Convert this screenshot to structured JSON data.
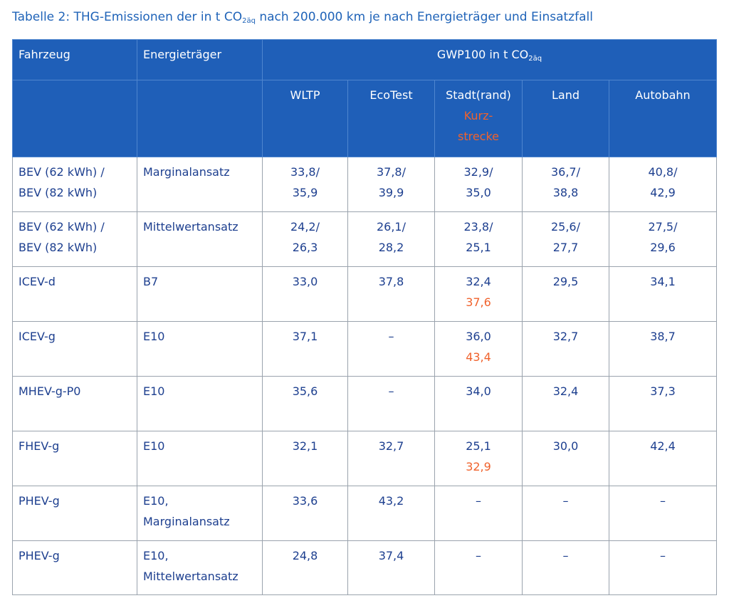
{
  "title": {
    "before": "Tabelle 2: THG-Emissionen der in t CO",
    "sub": "2äq",
    "after": " nach 200.000 km je nach Energieträger und Einsatzfall"
  },
  "table": {
    "header": {
      "vehicle": "Fahrzeug",
      "energy": "Energieträger",
      "group": {
        "before": "GWP100 in t CO",
        "sub": "2äq"
      },
      "columns": [
        {
          "lines": [
            "WLTP"
          ]
        },
        {
          "lines": [
            "EcoTest"
          ]
        },
        {
          "lines": [
            "Stadt(rand)"
          ],
          "note": [
            "Kurz-",
            "strecke"
          ]
        },
        {
          "lines": [
            "Land"
          ]
        },
        {
          "lines": [
            "Autobahn"
          ]
        }
      ]
    },
    "rows": [
      {
        "vehicle": [
          "BEV (62 kWh) /",
          "BEV (82 kWh)"
        ],
        "energy": [
          "Marginalansatz"
        ],
        "cells": [
          {
            "lines": [
              "33,8/",
              "35,9"
            ]
          },
          {
            "lines": [
              "37,8/",
              "39,9"
            ]
          },
          {
            "lines": [
              "32,9/",
              "35,0"
            ]
          },
          {
            "lines": [
              "36,7/",
              "38,8"
            ]
          },
          {
            "lines": [
              "40,8/",
              "42,9"
            ]
          }
        ]
      },
      {
        "vehicle": [
          "BEV (62 kWh) /",
          "BEV (82 kWh)"
        ],
        "energy": [
          "Mittelwertansatz"
        ],
        "cells": [
          {
            "lines": [
              "24,2/",
              "26,3"
            ]
          },
          {
            "lines": [
              "26,1/",
              "28,2"
            ]
          },
          {
            "lines": [
              "23,8/",
              "25,1"
            ]
          },
          {
            "lines": [
              "25,6/",
              "27,7"
            ]
          },
          {
            "lines": [
              "27,5/",
              "29,6"
            ]
          }
        ]
      },
      {
        "vehicle": [
          "ICEV-d"
        ],
        "energy": [
          "B7"
        ],
        "cells": [
          {
            "lines": [
              "33,0"
            ]
          },
          {
            "lines": [
              "37,8"
            ]
          },
          {
            "lines": [
              "32,4"
            ],
            "note": [
              "37,6"
            ]
          },
          {
            "lines": [
              "29,5"
            ]
          },
          {
            "lines": [
              "34,1"
            ]
          }
        ]
      },
      {
        "vehicle": [
          "ICEV-g"
        ],
        "energy": [
          "E10"
        ],
        "cells": [
          {
            "lines": [
              "37,1"
            ]
          },
          {
            "lines": [
              "–"
            ]
          },
          {
            "lines": [
              "36,0"
            ],
            "note": [
              "43,4"
            ]
          },
          {
            "lines": [
              "32,7"
            ]
          },
          {
            "lines": [
              "38,7"
            ]
          }
        ]
      },
      {
        "vehicle": [
          "MHEV-g-P0"
        ],
        "energy": [
          "E10"
        ],
        "cells": [
          {
            "lines": [
              "35,6"
            ]
          },
          {
            "lines": [
              "–"
            ]
          },
          {
            "lines": [
              "34,0"
            ]
          },
          {
            "lines": [
              "32,4"
            ]
          },
          {
            "lines": [
              "37,3"
            ]
          }
        ]
      },
      {
        "vehicle": [
          "FHEV-g"
        ],
        "energy": [
          "E10"
        ],
        "cells": [
          {
            "lines": [
              "32,1"
            ]
          },
          {
            "lines": [
              "32,7"
            ]
          },
          {
            "lines": [
              "25,1"
            ],
            "note": [
              "32,9"
            ]
          },
          {
            "lines": [
              "30,0"
            ]
          },
          {
            "lines": [
              "42,4"
            ]
          }
        ]
      },
      {
        "vehicle": [
          "PHEV-g"
        ],
        "energy": [
          "E10,",
          "Marginalansatz"
        ],
        "cells": [
          {
            "lines": [
              "33,6"
            ]
          },
          {
            "lines": [
              "43,2"
            ]
          },
          {
            "lines": [
              "–"
            ]
          },
          {
            "lines": [
              "–"
            ]
          },
          {
            "lines": [
              "–"
            ]
          }
        ]
      },
      {
        "vehicle": [
          "PHEV-g"
        ],
        "energy": [
          "E10,",
          "Mittelwertansatz"
        ],
        "cells": [
          {
            "lines": [
              "24,8"
            ]
          },
          {
            "lines": [
              "37,4"
            ]
          },
          {
            "lines": [
              "–"
            ]
          },
          {
            "lines": [
              "–"
            ]
          },
          {
            "lines": [
              "–"
            ]
          }
        ]
      }
    ]
  }
}
